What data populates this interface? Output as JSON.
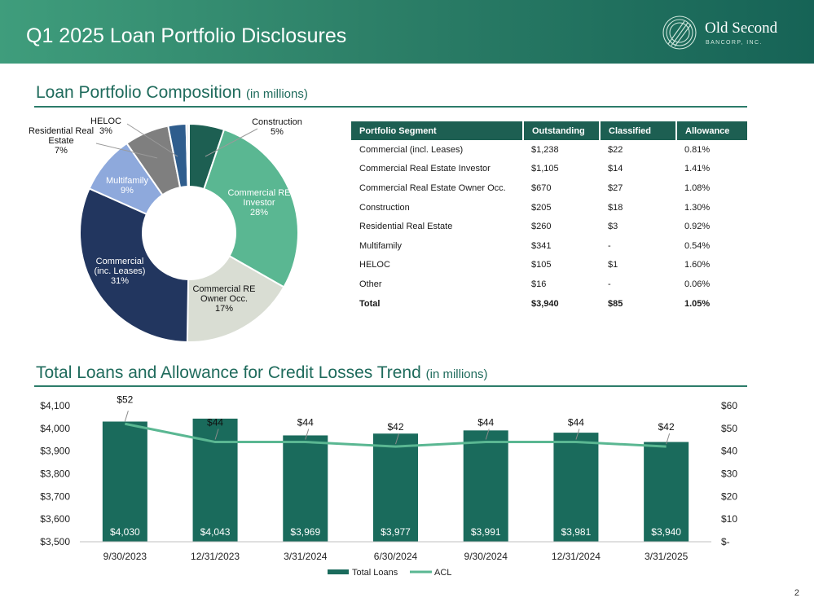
{
  "header": {
    "title": "Q1 2025 Loan Portfolio Disclosures"
  },
  "logo": {
    "name": "Old Second",
    "subtitle": "BANCORP, INC."
  },
  "colors": {
    "primary": "#1d5f52",
    "accent": "#5ab792",
    "bar": "#1a6b5c"
  },
  "composition": {
    "title": "Loan Portfolio Composition",
    "unit": "(in millions)"
  },
  "trend": {
    "title": "Total Loans and Allowance for Credit Losses Trend",
    "unit": "(in millions)"
  },
  "table": {
    "headers": [
      "Portfolio Segment",
      "Outstanding",
      "Classified",
      "Allowance"
    ],
    "rows": [
      [
        "Commercial (incl. Leases)",
        "$1,238",
        "$22",
        "0.81%"
      ],
      [
        "Commercial Real Estate Investor",
        "$1,105",
        "$14",
        "1.41%"
      ],
      [
        "Commercial Real Estate Owner Occ.",
        "$670",
        "$27",
        "1.08%"
      ],
      [
        "Construction",
        "$205",
        "$18",
        "1.30%"
      ],
      [
        "Residential Real Estate",
        "$260",
        "$3",
        "0.92%"
      ],
      [
        "Multifamily",
        "$341",
        "-",
        "0.54%"
      ],
      [
        "HELOC",
        "$105",
        "$1",
        "1.60%"
      ],
      [
        "Other",
        "$16",
        "-",
        "0.06%"
      ]
    ],
    "total": [
      "Total",
      "$3,940",
      "$85",
      "1.05%"
    ]
  },
  "chart_data": [
    {
      "type": "pie",
      "title": "",
      "slices": [
        {
          "label": "Construction",
          "lines": [
            "Construction",
            "5%"
          ],
          "value": 205,
          "percent": 5,
          "color": "#1d5f52"
        },
        {
          "label": "Commercial RE Investor",
          "lines": [
            "Commercial RE",
            "Investor",
            "28%"
          ],
          "value": 1105,
          "percent": 28,
          "color": "#5ab792"
        },
        {
          "label": "Commercial RE Owner Occ.",
          "lines": [
            "Commercial RE",
            "Owner Occ.",
            "17%"
          ],
          "value": 670,
          "percent": 17,
          "color": "#d9ddd3"
        },
        {
          "label": "Commercial (inc. Leases)",
          "lines": [
            "Commercial",
            "(inc. Leases)",
            "31%"
          ],
          "value": 1238,
          "percent": 31,
          "color": "#22365f"
        },
        {
          "label": "Multifamily",
          "lines": [
            "Multifamily",
            "9%"
          ],
          "value": 341,
          "percent": 9,
          "color": "#8ea9dc"
        },
        {
          "label": "Residential Real Estate",
          "lines": [
            "Residential Real",
            "Estate",
            "7%"
          ],
          "value": 260,
          "percent": 7,
          "color": "#7f7f7f"
        },
        {
          "label": "HELOC",
          "lines": [
            "HELOC",
            "3%"
          ],
          "value": 105,
          "percent": 3,
          "color": "#2f5d8d"
        },
        {
          "label": "Other",
          "lines": [],
          "value": 16,
          "percent": 0,
          "color": "#ededed"
        }
      ]
    },
    {
      "type": "bar",
      "title": "",
      "categories": [
        "9/30/2023",
        "12/31/2023",
        "3/31/2024",
        "6/30/2024",
        "9/30/2024",
        "12/31/2024",
        "3/31/2025"
      ],
      "series": [
        {
          "name": "Total Loans",
          "axis": "left",
          "values": [
            4030,
            4043,
            3969,
            3977,
            3991,
            3981,
            3940
          ],
          "labels": [
            "$4,030",
            "$4,043",
            "$3,969",
            "$3,977",
            "$3,991",
            "$3,981",
            "$3,940"
          ],
          "color": "#1a6b5c"
        },
        {
          "name": "ACL",
          "axis": "right",
          "type": "line",
          "values": [
            52,
            44,
            44,
            42,
            44,
            44,
            42
          ],
          "labels": [
            "$52",
            "$44",
            "$44",
            "$42",
            "$44",
            "$44",
            "$42"
          ],
          "color": "#5ab792"
        }
      ],
      "ylim": [
        3500,
        4100
      ],
      "yticks": [
        "$3,500",
        "$3,600",
        "$3,700",
        "$3,800",
        "$3,900",
        "$4,000",
        "$4,100"
      ],
      "y2lim": [
        0,
        60
      ],
      "y2ticks": [
        "$-",
        "$10",
        "$20",
        "$30",
        "$40",
        "$50",
        "$60"
      ],
      "legend": "bottom",
      "grid": false
    }
  ],
  "page": {
    "number": "2"
  }
}
